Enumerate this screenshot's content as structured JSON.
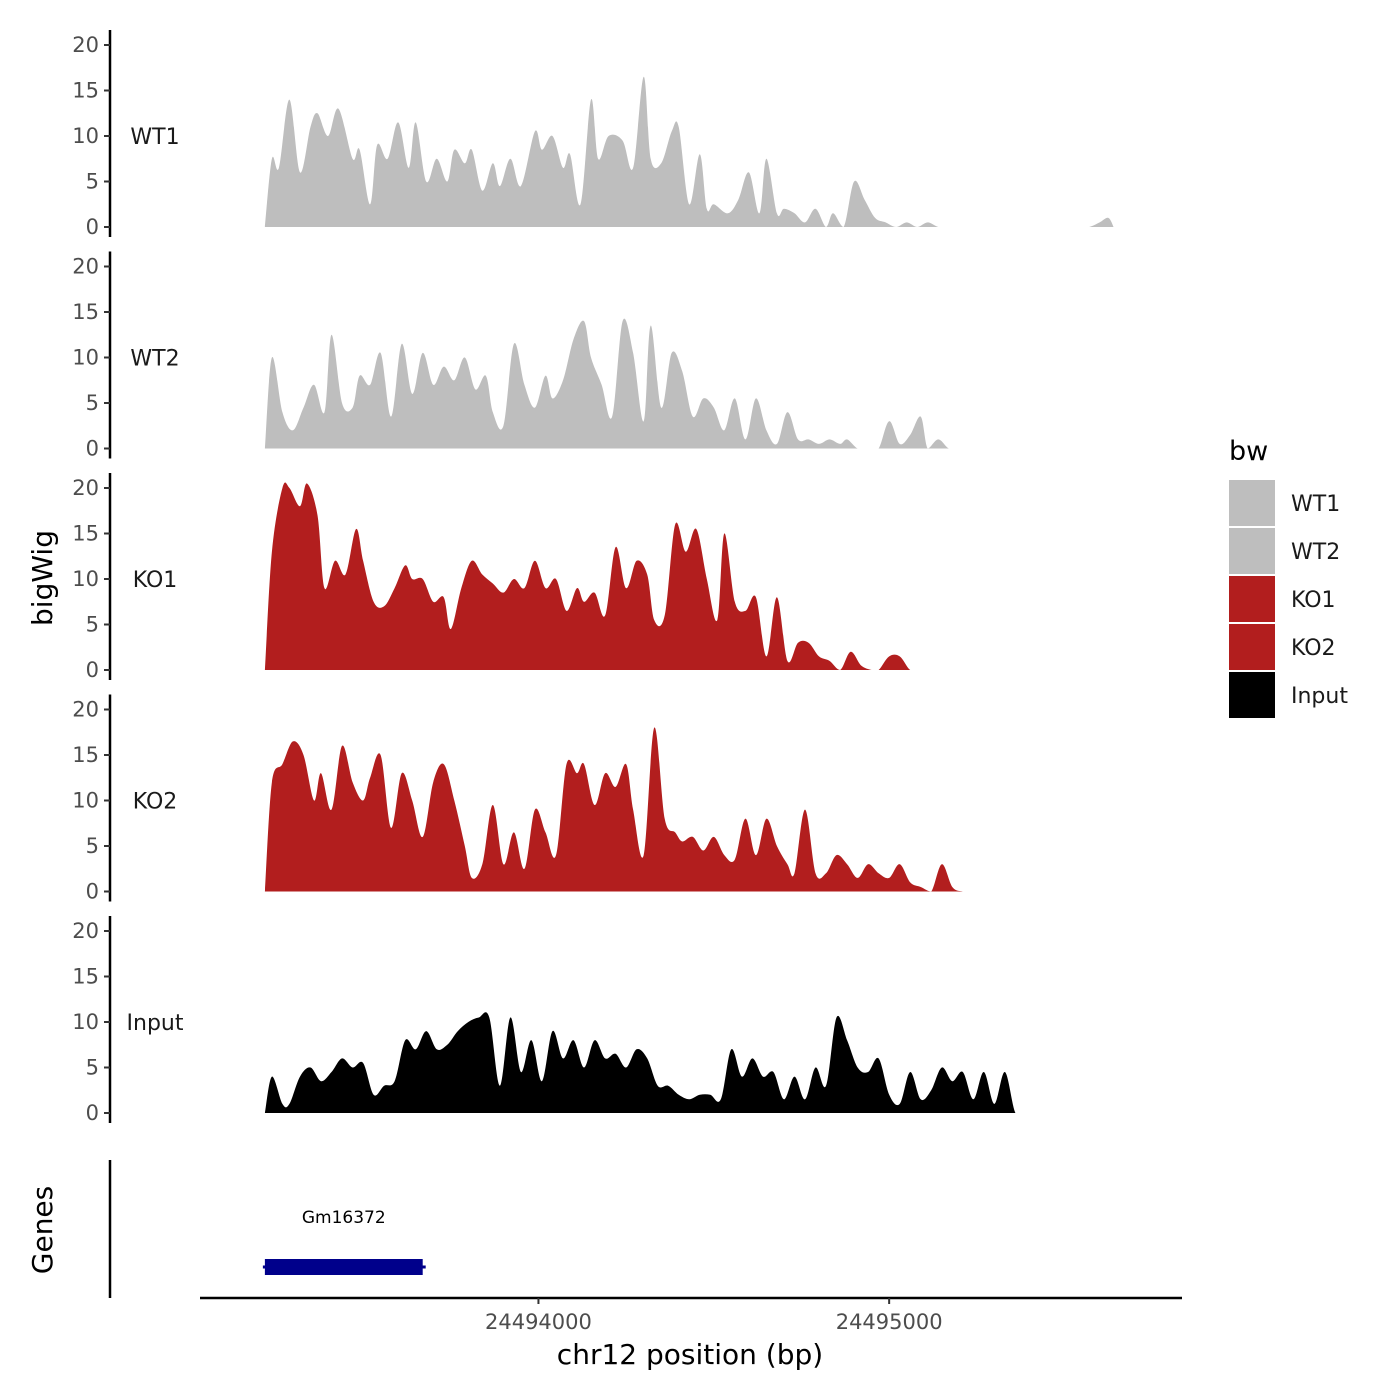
{
  "colors": {
    "WT": "#bebebe",
    "KO": "#b21e1e",
    "Input": "#000000",
    "gene": "#00008b",
    "axis": "#000000"
  },
  "chart_data": {
    "type": "area",
    "title": "",
    "xlabel": "chr12 position (bp)",
    "ylabel": "bigWig",
    "genes_label": "Genes",
    "xlim": [
      24493035,
      24495835
    ],
    "ylim": [
      0,
      20
    ],
    "y_ticks": [
      "0",
      "5",
      "10",
      "15",
      "20"
    ],
    "x_ticks": [
      {
        "value": 24494000,
        "label": "24494000"
      },
      {
        "value": 24495000,
        "label": "24495000"
      }
    ],
    "legend_title": "bw",
    "legend": [
      {
        "name": "WT1",
        "color": "#bebebe"
      },
      {
        "name": "WT2",
        "color": "#bebebe"
      },
      {
        "name": "KO1",
        "color": "#b21e1e"
      },
      {
        "name": "KO2",
        "color": "#b21e1e"
      },
      {
        "name": "Input",
        "color": "#000000"
      }
    ],
    "series": [
      {
        "name": "WT1",
        "color": "#bebebe",
        "x": [
          24493220,
          24493240,
          24493260,
          24493290,
          24493320,
          24493350,
          24493370,
          24493400,
          24493430,
          24493470,
          24493490,
          24493520,
          24493540,
          24493570,
          24493600,
          24493630,
          24493650,
          24493680,
          24493710,
          24493740,
          24493760,
          24493790,
          24493810,
          24493840,
          24493870,
          24493890,
          24493920,
          24493950,
          24493990,
          24494010,
          24494040,
          24494070,
          24494090,
          24494120,
          24494150,
          24494170,
          24494200,
          24494240,
          24494270,
          24494300,
          24494320,
          24494350,
          24494380,
          24494400,
          24494430,
          24494460,
          24494480,
          24494500,
          24494540,
          24494570,
          24494600,
          24494630,
          24494650,
          24494680,
          24494700,
          24494730,
          24494760,
          24494790,
          24494820,
          24494840,
          24494870,
          24494900,
          24494930,
          24494960,
          24494990,
          24495020,
          24495050,
          24495080,
          24495110,
          24495140,
          24495170,
          24495200,
          24495230,
          24495250,
          24495270,
          24495300,
          24495330,
          24495360,
          24495390,
          24495420,
          24495450,
          24495480,
          24495510,
          24495540,
          24495570,
          24495600,
          24495625,
          24495640
        ],
        "values": [
          0,
          7.5,
          6.5,
          14,
          6,
          11,
          12.5,
          10,
          13,
          7.5,
          8.5,
          2.5,
          9,
          7.5,
          11.5,
          6.5,
          11.5,
          5,
          7.5,
          5,
          8.5,
          7,
          8.5,
          4,
          7,
          4.5,
          7.5,
          4.5,
          10.5,
          8.5,
          10,
          6.5,
          8,
          2.5,
          14,
          7.5,
          10,
          9.5,
          6.5,
          16.5,
          7.5,
          7,
          10.5,
          11,
          2.5,
          8,
          2,
          2.5,
          1.5,
          3,
          6,
          1.5,
          7.5,
          1.5,
          2,
          1.5,
          0.5,
          2,
          0,
          1.5,
          0,
          5,
          3,
          1,
          0.5,
          0,
          0.5,
          0,
          0.5,
          0,
          0,
          0,
          0,
          0,
          0,
          0,
          0,
          0,
          0,
          0,
          0,
          0,
          0,
          0,
          0,
          0.5,
          1,
          0
        ]
      },
      {
        "name": "WT2",
        "color": "#bebebe",
        "x": [
          24493220,
          24493240,
          24493270,
          24493300,
          24493330,
          24493360,
          24493390,
          24493410,
          24493440,
          24493470,
          24493490,
          24493520,
          24493550,
          24493580,
          24493610,
          24493640,
          24493670,
          24493700,
          24493730,
          24493760,
          24493790,
          24493820,
          24493850,
          24493870,
          24493900,
          24493930,
          24493960,
          24493990,
          24494020,
          24494040,
          24494070,
          24494100,
          24494130,
          24494150,
          24494180,
          24494210,
          24494240,
          24494270,
          24494300,
          24494320,
          24494350,
          24494380,
          24494410,
          24494440,
          24494470,
          24494500,
          24494530,
          24494560,
          24494590,
          24494620,
          24494650,
          24494680,
          24494710,
          24494740,
          24494770,
          24494800,
          24494830,
          24494860,
          24494880,
          24494910,
          24494940,
          24494970,
          24495000,
          24495030,
          24495060,
          24495090,
          24495110,
          24495140,
          24495170,
          24495200,
          24495230,
          24495260,
          24495290,
          24495310,
          24495340,
          24495370,
          24495400,
          24495430,
          24495460,
          24495480,
          24495510,
          24495540,
          24495570,
          24495600,
          24495630,
          24495640
        ],
        "values": [
          0,
          10,
          4,
          2,
          4.5,
          7,
          4,
          12.5,
          5,
          4.5,
          8,
          7,
          10.5,
          3.5,
          11.5,
          6,
          10.5,
          7,
          9,
          7.5,
          10,
          6.5,
          8,
          4,
          2.5,
          11.5,
          7,
          4.5,
          8,
          5.5,
          7.5,
          12,
          14,
          10,
          7,
          3.5,
          14,
          10.5,
          3,
          13.5,
          4.5,
          10.5,
          8.5,
          3.5,
          5.5,
          4.5,
          2,
          5.5,
          1,
          5.5,
          2,
          0.5,
          4,
          1,
          1,
          0.5,
          1,
          0.5,
          1,
          0,
          0,
          0,
          3,
          0.5,
          1.5,
          3.5,
          0,
          1,
          0,
          0,
          0,
          0,
          0,
          0,
          0,
          0,
          0,
          0,
          0,
          0,
          0,
          0,
          0,
          0,
          0,
          0
        ]
      },
      {
        "name": "KO1",
        "color": "#b21e1e",
        "x": [
          24493220,
          24493240,
          24493270,
          24493290,
          24493320,
          24493340,
          24493370,
          24493390,
          24493420,
          24493450,
          24493480,
          24493500,
          24493530,
          24493560,
          24493590,
          24493620,
          24493640,
          24493670,
          24493700,
          24493730,
          24493750,
          24493780,
          24493810,
          24493840,
          24493870,
          24493900,
          24493930,
          24493960,
          24493990,
          24494020,
          24494050,
          24494080,
          24494110,
          24494130,
          24494160,
          24494190,
          24494220,
          24494250,
          24494280,
          24494310,
          24494330,
          24494360,
          24494390,
          24494420,
          24494450,
          24494480,
          24494510,
          24494530,
          24494560,
          24494590,
          24494620,
          24494650,
          24494680,
          24494710,
          24494740,
          24494770,
          24494800,
          24494830,
          24494860,
          24494890,
          24494920,
          24494950,
          24494970,
          24495000,
          24495030,
          24495060,
          24495090,
          24495120,
          24495140,
          24495170,
          24495200,
          24495230,
          24495260,
          24495290,
          24495320,
          24495350,
          24495380,
          24495400,
          24495430,
          24495460,
          24495490,
          24495520,
          24495550,
          24495580,
          24495610,
          24495630,
          24495640
        ],
        "values": [
          0,
          13,
          20,
          20,
          18,
          20.5,
          17,
          9,
          12,
          10.5,
          15.5,
          12,
          7.5,
          7,
          9,
          11.5,
          10,
          10,
          7.5,
          8,
          4.5,
          9,
          12,
          10.5,
          9.5,
          8.5,
          10,
          9,
          12,
          9,
          10,
          6.5,
          9,
          7.5,
          8.5,
          6,
          13.5,
          9,
          12,
          10.5,
          5.5,
          6,
          16,
          13,
          15.5,
          10,
          5.5,
          15,
          7.5,
          6.5,
          8,
          1.5,
          8,
          1,
          3,
          3,
          1.5,
          1,
          0,
          2,
          0.5,
          0,
          0,
          1.5,
          1.5,
          0,
          0,
          0,
          0,
          0,
          0,
          0,
          0,
          0,
          0,
          0,
          0,
          0,
          0,
          0,
          0,
          0,
          0,
          0,
          0,
          0,
          0
        ]
      },
      {
        "name": "KO2",
        "color": "#b21e1e",
        "x": [
          24493220,
          24493240,
          24493270,
          24493300,
          24493330,
          24493360,
          24493380,
          24493410,
          24493440,
          24493470,
          24493500,
          24493520,
          24493550,
          24493580,
          24493610,
          24493640,
          24493670,
          24493700,
          24493730,
          24493760,
          24493790,
          24493810,
          24493840,
          24493870,
          24493900,
          24493930,
          24493960,
          24493990,
          24494020,
          24494050,
          24494080,
          24494110,
          24494130,
          24494160,
          24494190,
          24494220,
          24494250,
          24494270,
          24494300,
          24494330,
          24494360,
          24494390,
          24494410,
          24494440,
          24494470,
          24494500,
          24494530,
          24494560,
          24494590,
          24494620,
          24494650,
          24494680,
          24494710,
          24494730,
          24494760,
          24494790,
          24494820,
          24494850,
          24494880,
          24494910,
          24494940,
          24494970,
          24495000,
          24495030,
          24495060,
          24495090,
          24495120,
          24495150,
          24495180,
          24495210,
          24495240,
          24495270,
          24495300,
          24495330,
          24495360,
          24495390,
          24495420,
          24495450,
          24495480,
          24495510,
          24495540,
          24495570,
          24495600,
          24495620,
          24495640
        ],
        "values": [
          0,
          12,
          14,
          16.5,
          15,
          10,
          13,
          9,
          16,
          12,
          10,
          12.5,
          15,
          7,
          13,
          10,
          6,
          12,
          14,
          10,
          5,
          1.5,
          3,
          9.5,
          3,
          6.5,
          2.5,
          9,
          6.5,
          4,
          14,
          13,
          14,
          9.5,
          13,
          11.5,
          14,
          9,
          4,
          18,
          8,
          6.5,
          5.5,
          6,
          4.5,
          6,
          4,
          3.5,
          8,
          4,
          8,
          5,
          3,
          2,
          9,
          2,
          2,
          4,
          3,
          1.5,
          3,
          2,
          1.5,
          3,
          1,
          0.5,
          0,
          3,
          0.5,
          0,
          0,
          0,
          0,
          0,
          0,
          0,
          0,
          0,
          0,
          0,
          0,
          0,
          0,
          0,
          0
        ]
      },
      {
        "name": "Input",
        "color": "#000000",
        "x": [
          24493220,
          24493240,
          24493270,
          24493290,
          24493320,
          24493350,
          24493380,
          24493410,
          24493440,
          24493470,
          24493500,
          24493530,
          24493560,
          24493590,
          24493620,
          24493650,
          24493680,
          24493710,
          24493740,
          24493770,
          24493800,
          24493830,
          24493860,
          24493890,
          24493920,
          24493950,
          24493980,
          24494010,
          24494040,
          24494070,
          24494100,
          24494130,
          24494160,
          24494190,
          24494220,
          24494250,
          24494280,
          24494310,
          24494340,
          24494370,
          24494400,
          24494430,
          24494460,
          24494490,
          24494520,
          24494550,
          24494580,
          24494610,
          24494640,
          24494670,
          24494700,
          24494730,
          24494760,
          24494790,
          24494820,
          24494850,
          24494880,
          24494910,
          24494940,
          24494970,
          24495000,
          24495030,
          24495060,
          24495090,
          24495120,
          24495150,
          24495180,
          24495210,
          24495240,
          24495270,
          24495300,
          24495330,
          24495360,
          24495390,
          24495420,
          24495450,
          24495480,
          24495510,
          24495540,
          24495570,
          24495600,
          24495630,
          24495640
        ],
        "values": [
          0,
          4,
          1,
          1,
          4,
          5,
          3.5,
          4.5,
          6,
          5,
          5.5,
          2,
          3,
          3.5,
          8,
          7,
          9,
          7,
          7.5,
          9,
          10,
          10.5,
          10.5,
          3,
          10.5,
          4.5,
          8,
          3.5,
          9,
          6,
          8,
          5,
          8,
          6,
          6.5,
          5,
          7,
          6,
          3,
          3,
          2,
          1.5,
          2,
          2,
          1.5,
          7,
          4,
          6,
          4,
          4.5,
          1.5,
          4,
          1.5,
          5,
          3,
          10.5,
          8,
          5,
          4.5,
          6,
          2,
          1,
          4.5,
          1.5,
          2.5,
          5,
          3.5,
          4.5,
          1.5,
          4.5,
          1,
          4.5,
          0,
          0,
          0,
          0,
          0,
          0,
          0,
          0,
          0,
          0,
          0
        ]
      }
    ],
    "genes": [
      {
        "name": "Gm16372",
        "start": 24493220,
        "end": 24493670,
        "strand": "-"
      }
    ]
  }
}
